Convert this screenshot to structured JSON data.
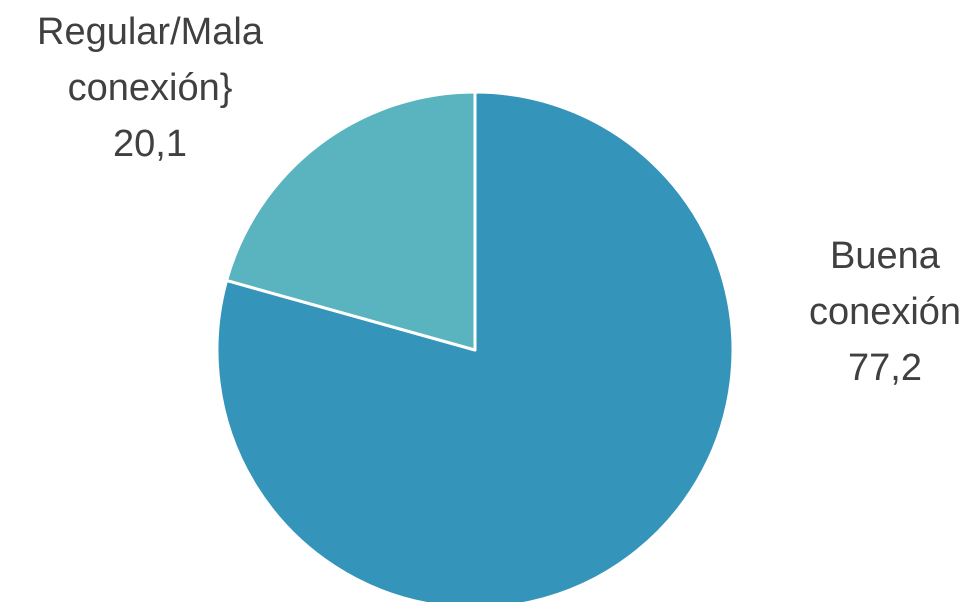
{
  "chart_data": {
    "type": "pie",
    "slices": [
      {
        "label_lines": [
          "Buena",
          "conexión"
        ],
        "value": 77.2,
        "value_text": "77,2",
        "color": "#3594BA"
      },
      {
        "label_lines": [
          "Regular/Mala",
          "conexión}"
        ],
        "value": 20.1,
        "value_text": "20,1",
        "color": "#5AB4BF"
      }
    ],
    "start_angle_deg": 0,
    "direction": "clockwise",
    "legend": "none",
    "data_labels": "outside"
  }
}
